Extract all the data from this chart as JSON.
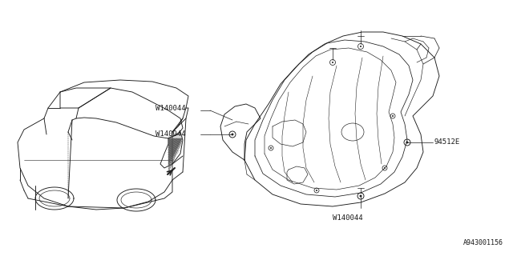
{
  "bg_color": "#ffffff",
  "line_color": "#1a1a1a",
  "part_number_94512E": "94512E",
  "part_number_W140044": "W140044",
  "diagram_id": "A943001156",
  "font_size_labels": 6.5,
  "font_size_diagram_id": 6.0
}
